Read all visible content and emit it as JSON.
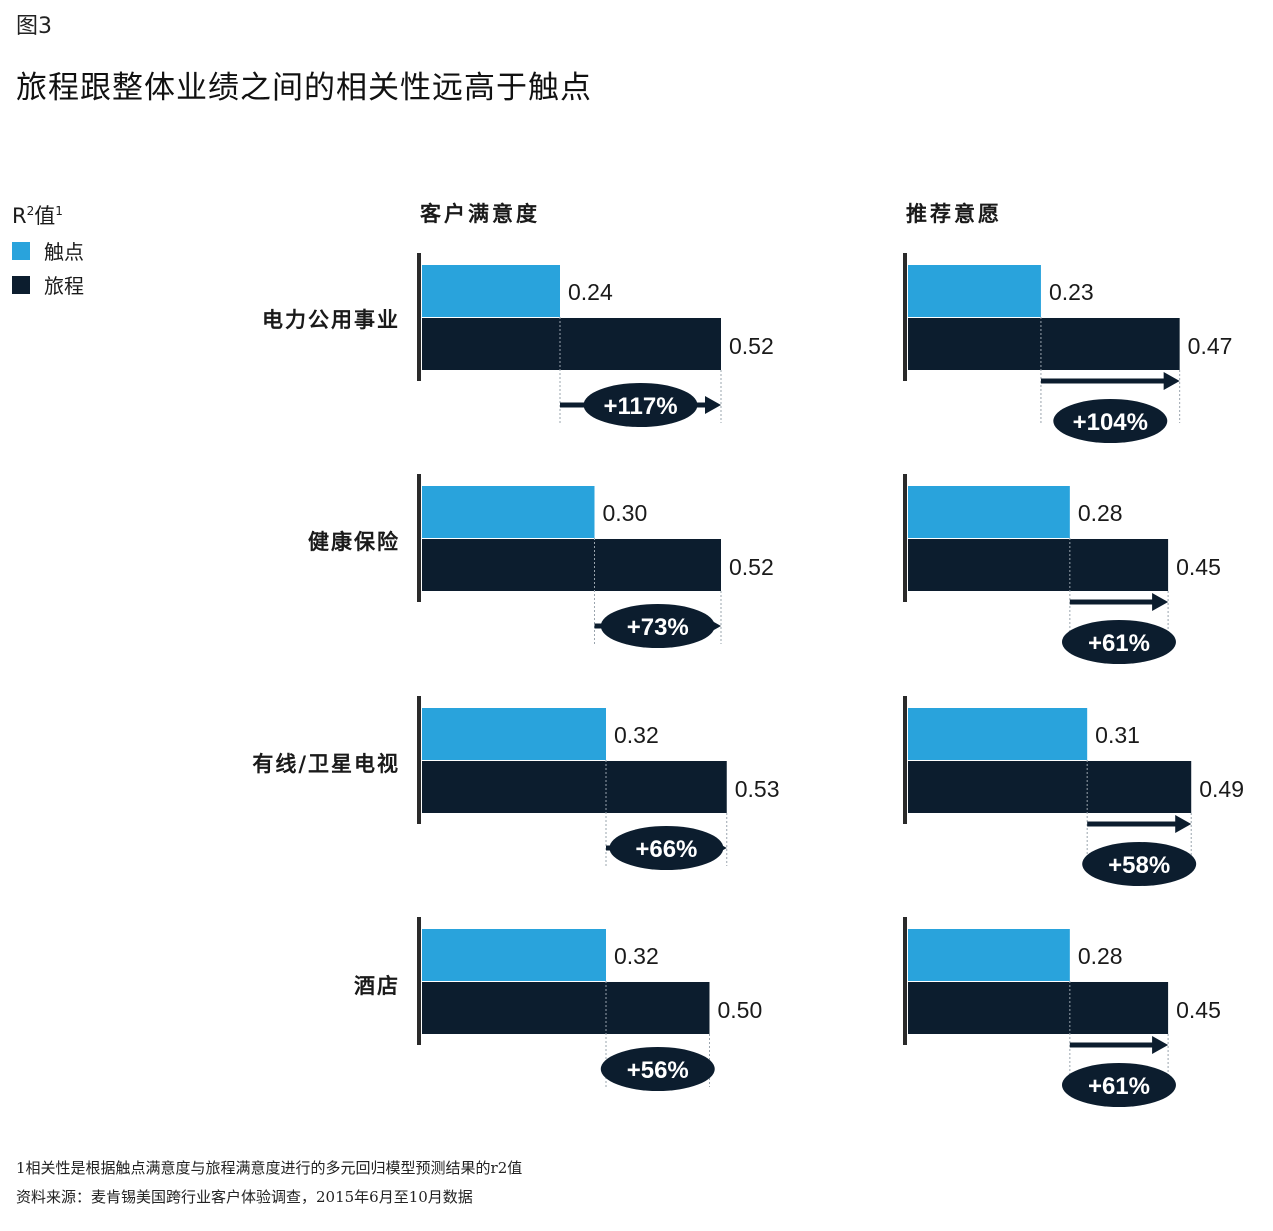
{
  "figure_label": "图3",
  "title": "旅程跟整体业绩之间的相关性远高于触点",
  "legend": {
    "title": "R²值¹",
    "title_main": "R",
    "title_sup": "2",
    "title_tail": "值",
    "title_note": "1",
    "items": [
      {
        "label": "触点",
        "color": "#29a3dc"
      },
      {
        "label": "旅程",
        "color": "#0c1d2e"
      }
    ]
  },
  "chart_data": [
    {
      "type": "bar",
      "title": "客户满意度",
      "categories": [
        "电力公用事业",
        "健康保险",
        "有线/卫星电视",
        "酒店"
      ],
      "series": [
        {
          "name": "触点",
          "values": [
            0.24,
            0.3,
            0.32,
            0.32
          ]
        },
        {
          "name": "旅程",
          "values": [
            0.52,
            0.52,
            0.53,
            0.5
          ]
        }
      ],
      "value_labels": {
        "触点": [
          "0.24",
          "0.30",
          "0.32",
          "0.32"
        ],
        "旅程": [
          "0.52",
          "0.52",
          "0.53",
          "0.50"
        ]
      },
      "differences": [
        "+117%",
        "+73%",
        "+66%",
        "+56%"
      ],
      "orientation": "horizontal",
      "grid": false
    },
    {
      "type": "bar",
      "title": "推荐意愿",
      "categories": [
        "电力公用事业",
        "健康保险",
        "有线/卫星电视",
        "酒店"
      ],
      "series": [
        {
          "name": "触点",
          "values": [
            0.23,
            0.28,
            0.31,
            0.28
          ]
        },
        {
          "name": "旅程",
          "values": [
            0.47,
            0.45,
            0.49,
            0.45
          ]
        }
      ],
      "value_labels": {
        "触点": [
          "0.23",
          "0.28",
          "0.31",
          "0.28"
        ],
        "旅程": [
          "0.47",
          "0.45",
          "0.49",
          "0.45"
        ]
      },
      "differences": [
        "+104%",
        "+61%",
        "+58%",
        "+61%"
      ],
      "orientation": "horizontal",
      "grid": false
    }
  ],
  "footnotes": {
    "note": "1相关性是根据触点满意度与旅程满意度进行的多元回归模型预测结果的r2值",
    "source": "资料来源：麦肯锡美国跨行业客户体验调查，2015年6月至10月数据"
  }
}
